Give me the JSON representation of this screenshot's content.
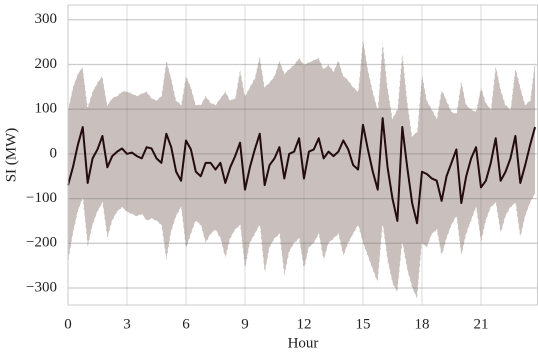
{
  "chart_data": {
    "type": "line",
    "x_label": "Hour",
    "y_label": "SI (MW)",
    "color": "#230b10",
    "band_color": "#c9c0bd",
    "grid": true,
    "xlim": [
      0,
      23.9
    ],
    "ylim": [
      -338,
      333
    ],
    "xticks": [
      0,
      3,
      6,
      9,
      12,
      15,
      18,
      21
    ],
    "yticks": [
      {
        "value": -300,
        "label": "−300"
      },
      {
        "value": -200,
        "label": "−200"
      },
      {
        "value": -100,
        "label": "−100"
      },
      0,
      100,
      200,
      300
    ],
    "x": [
      0,
      0.25,
      0.5,
      0.75,
      1,
      1.25,
      1.5,
      1.75,
      2,
      2.25,
      2.5,
      2.75,
      3,
      3.25,
      3.5,
      3.75,
      4,
      4.25,
      4.5,
      4.75,
      5,
      5.25,
      5.5,
      5.75,
      6,
      6.25,
      6.5,
      6.75,
      7,
      7.25,
      7.5,
      7.75,
      8,
      8.25,
      8.5,
      8.75,
      9,
      9.25,
      9.5,
      9.75,
      10,
      10.25,
      10.5,
      10.75,
      11,
      11.25,
      11.5,
      11.75,
      12,
      12.25,
      12.5,
      12.75,
      13,
      13.25,
      13.5,
      13.75,
      14,
      14.25,
      14.5,
      14.75,
      15,
      15.25,
      15.5,
      15.75,
      16,
      16.25,
      16.5,
      16.75,
      17,
      17.25,
      17.5,
      17.75,
      18,
      18.25,
      18.5,
      18.75,
      19,
      19.25,
      19.5,
      19.75,
      20,
      20.25,
      20.5,
      20.75,
      21,
      21.25,
      21.5,
      21.75,
      22,
      22.25,
      22.5,
      22.75,
      23,
      23.25,
      23.5,
      23.75
    ],
    "values": [
      -70,
      -30,
      20,
      60,
      -65,
      -10,
      10,
      40,
      -30,
      -5,
      5,
      12,
      0,
      3,
      -5,
      -10,
      15,
      12,
      -10,
      -20,
      45,
      15,
      -40,
      -60,
      30,
      10,
      -40,
      -50,
      -20,
      -20,
      -35,
      -20,
      -65,
      -30,
      -5,
      25,
      -80,
      -30,
      10,
      45,
      -70,
      -25,
      -10,
      15,
      -55,
      0,
      5,
      35,
      -55,
      5,
      10,
      35,
      -10,
      5,
      -5,
      5,
      30,
      10,
      -25,
      -35,
      65,
      10,
      -40,
      -80,
      80,
      -30,
      -100,
      -150,
      60,
      -30,
      -110,
      -155,
      -40,
      -45,
      -55,
      -60,
      -105,
      -50,
      -20,
      10,
      -110,
      -50,
      -10,
      15,
      -75,
      -60,
      -20,
      35,
      -60,
      -40,
      -10,
      40,
      -65,
      -25,
      20,
      60
    ],
    "upper": [
      100,
      150,
      180,
      195,
      105,
      140,
      160,
      175,
      110,
      125,
      130,
      140,
      140,
      135,
      130,
      135,
      140,
      125,
      120,
      130,
      210,
      170,
      120,
      110,
      175,
      150,
      110,
      110,
      130,
      115,
      110,
      125,
      140,
      120,
      125,
      190,
      130,
      150,
      170,
      220,
      150,
      160,
      175,
      210,
      180,
      190,
      200,
      215,
      200,
      205,
      210,
      215,
      190,
      200,
      185,
      210,
      175,
      165,
      150,
      140,
      260,
      190,
      140,
      100,
      255,
      150,
      80,
      100,
      230,
      120,
      40,
      50,
      180,
      120,
      100,
      80,
      145,
      120,
      95,
      90,
      165,
      110,
      100,
      95,
      150,
      115,
      100,
      200,
      145,
      110,
      100,
      195,
      150,
      110,
      120,
      210
    ],
    "lower": [
      -245,
      -180,
      -130,
      -100,
      -210,
      -160,
      -130,
      -110,
      -190,
      -150,
      -130,
      -120,
      -130,
      -135,
      -140,
      -135,
      -150,
      -145,
      -150,
      -160,
      -240,
      -175,
      -140,
      -120,
      -215,
      -180,
      -150,
      -160,
      -200,
      -180,
      -170,
      -190,
      -235,
      -190,
      -170,
      -160,
      -260,
      -200,
      -180,
      -160,
      -270,
      -210,
      -190,
      -180,
      -275,
      -220,
      -200,
      -190,
      -260,
      -210,
      -200,
      -180,
      -240,
      -200,
      -190,
      -180,
      -230,
      -200,
      -180,
      -160,
      -200,
      -230,
      -260,
      -290,
      -160,
      -240,
      -290,
      -310,
      -200,
      -260,
      -300,
      -325,
      -200,
      -210,
      -180,
      -170,
      -230,
      -190,
      -160,
      -140,
      -230,
      -180,
      -150,
      -120,
      -200,
      -150,
      -120,
      -110,
      -180,
      -140,
      -120,
      -110,
      -190,
      -140,
      -110,
      -90
    ]
  }
}
